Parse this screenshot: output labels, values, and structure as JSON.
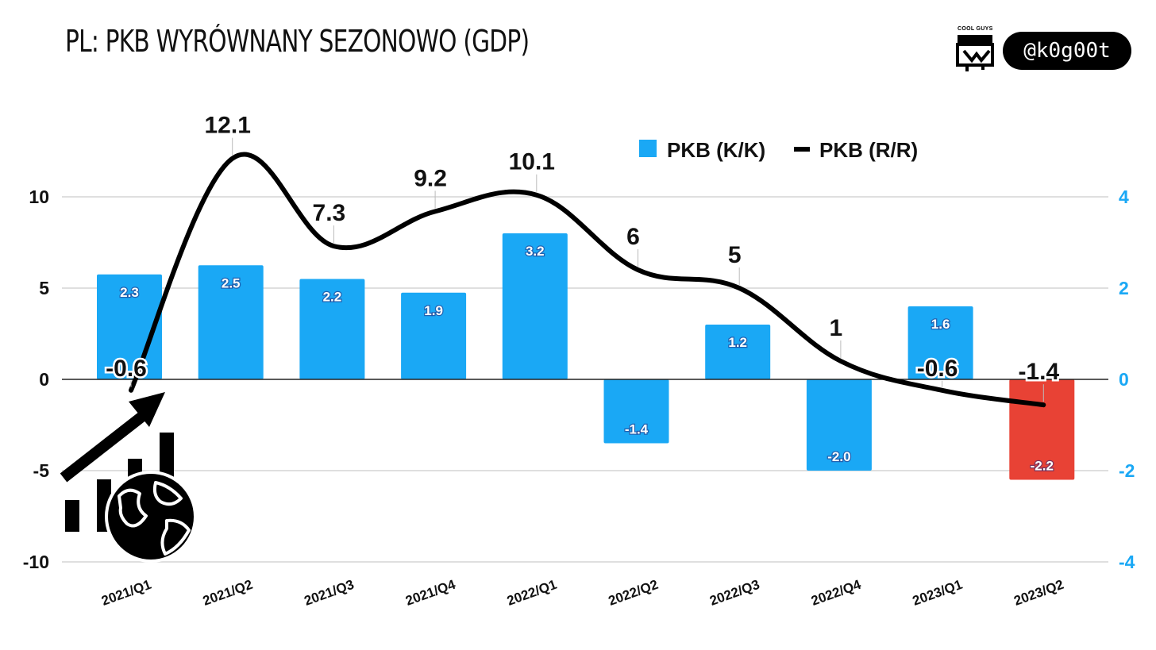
{
  "title": "PL: PKB WYRÓWNANY SEZONOWO (GDP)",
  "brand": {
    "logo_caption": "COOL GUYS",
    "logo_icon": "cool-guys-logo",
    "handle": "@k0g00t"
  },
  "decoration": {
    "icon": "global-growth-icon"
  },
  "colors": {
    "bar": "#1aa8f5",
    "bar_negative_last": "#e84235",
    "line": "#000000",
    "right_axis": "#1aa8f5",
    "grid": "#cccccc"
  },
  "chart_data": {
    "type": "bar",
    "categories": [
      "2021/Q1",
      "2021/Q2",
      "2021/Q3",
      "2021/Q4",
      "2022/Q1",
      "2022/Q2",
      "2022/Q3",
      "2022/Q4",
      "2023/Q1",
      "2023/Q2"
    ],
    "series": [
      {
        "name": "PKB (K/K)",
        "type": "bar",
        "axis": "right",
        "values": [
          2.3,
          2.5,
          2.2,
          1.9,
          3.2,
          -1.4,
          1.2,
          -2.0,
          1.6,
          -2.2
        ],
        "labels": [
          "2.3",
          "2.5",
          "2.2",
          "1.9",
          "3.2",
          "-1.4",
          "1.2",
          "-2.0",
          "1.6",
          "-2.2"
        ]
      },
      {
        "name": "PKB (R/R)",
        "type": "line",
        "axis": "left",
        "smooth": true,
        "values": [
          -0.6,
          12.1,
          7.3,
          9.2,
          10.1,
          6,
          5,
          1,
          -0.6,
          -1.4
        ],
        "labels": [
          "-0.6",
          "12.1",
          "7.3",
          "9.2",
          "10.1",
          "6",
          "5",
          "1",
          "-0.6",
          "-1.4"
        ]
      }
    ],
    "left_axis": {
      "ticks": [
        -10,
        -5,
        0,
        5,
        10
      ],
      "tick_labels": [
        "-10",
        "-5",
        "0",
        "5",
        "10"
      ],
      "ylim": [
        -10,
        10
      ]
    },
    "right_axis": {
      "ticks": [
        -4,
        -2,
        0,
        2,
        4
      ],
      "tick_labels": [
        "-4",
        "-2",
        "0",
        "2",
        "4"
      ],
      "ylim": [
        -4,
        4
      ]
    },
    "grid": true,
    "legend": {
      "position": "top-center"
    }
  }
}
